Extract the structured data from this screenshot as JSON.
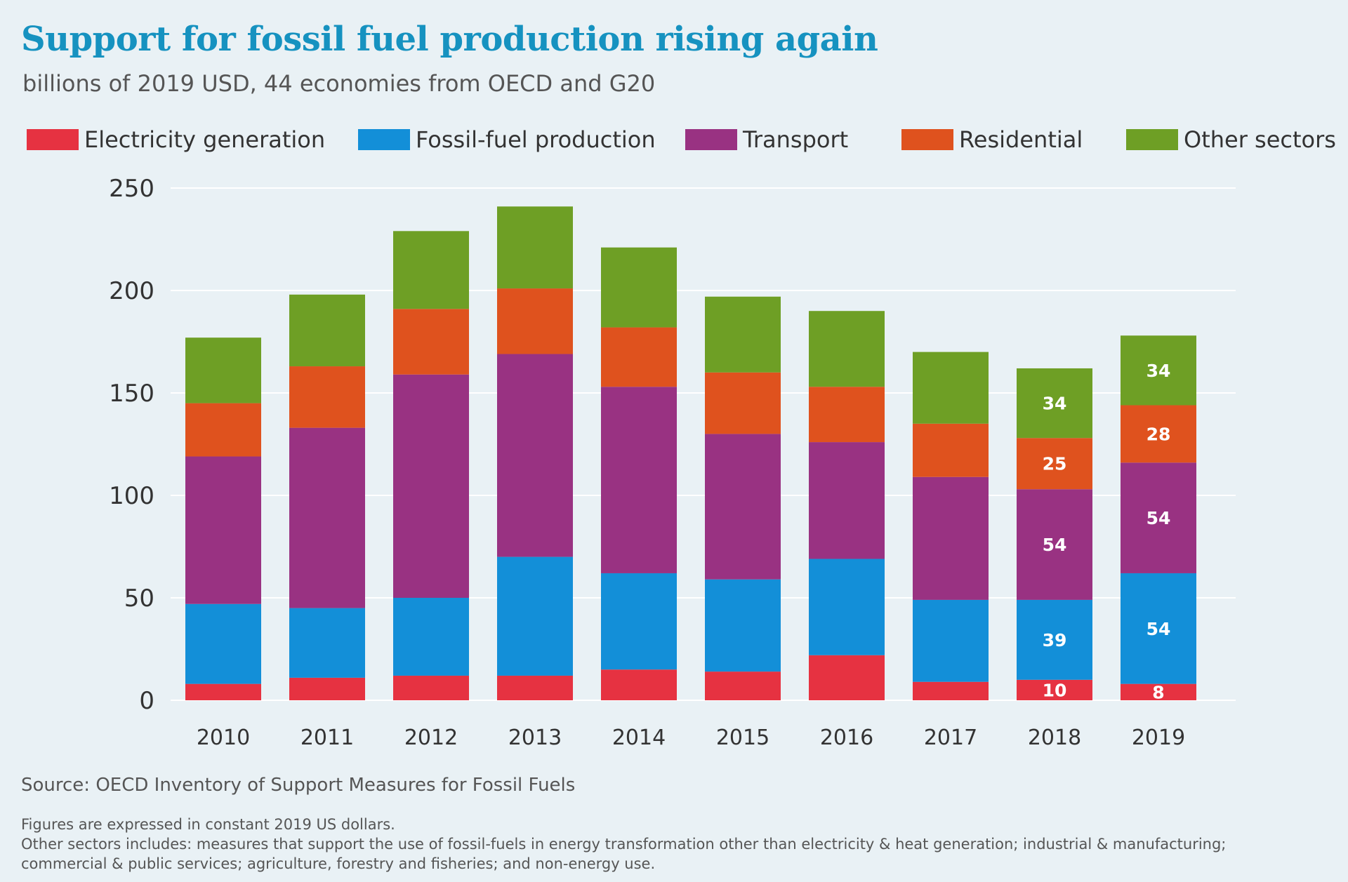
{
  "title": "Support for fossil fuel production rising again",
  "subtitle": "billions of 2019 USD, 44 economies from OECD and G20",
  "source": "Source: OECD Inventory of Support Measures for Fossil Fuels",
  "notes": [
    "Figures are expressed in constant 2019 US dollars.",
    "Other sectors includes: measures that support the use of fossil-fuels in energy transformation other than electricity & heat generation; industrial & manufacturing;",
    "commercial & public services; agriculture, forestry and fisheries; and non-energy use."
  ],
  "chart_data": {
    "type": "bar",
    "stacked": true,
    "categories": [
      "2010",
      "2011",
      "2012",
      "2013",
      "2014",
      "2015",
      "2016",
      "2017",
      "2018",
      "2019"
    ],
    "series": [
      {
        "name": "Electricity generation",
        "color": "#e63241",
        "values": [
          8,
          11,
          12,
          12,
          15,
          14,
          22,
          9,
          10,
          8
        ],
        "labels": [
          "",
          "",
          "",
          "",
          "",
          "",
          "",
          "",
          "10",
          "8"
        ]
      },
      {
        "name": "Fossil-fuel production",
        "color": "#138fd8",
        "values": [
          39,
          34,
          38,
          58,
          47,
          45,
          47,
          40,
          39,
          54
        ],
        "labels": [
          "",
          "",
          "",
          "",
          "",
          "",
          "",
          "",
          "39",
          "54"
        ]
      },
      {
        "name": "Transport",
        "color": "#993282",
        "values": [
          72,
          88,
          109,
          99,
          91,
          71,
          57,
          60,
          54,
          54
        ],
        "labels": [
          "",
          "",
          "",
          "",
          "",
          "",
          "",
          "",
          "54",
          "54"
        ]
      },
      {
        "name": "Residential",
        "color": "#df521e",
        "values": [
          26,
          30,
          32,
          32,
          29,
          30,
          27,
          26,
          25,
          28
        ],
        "labels": [
          "",
          "",
          "",
          "",
          "",
          "",
          "",
          "",
          "25",
          "28"
        ]
      },
      {
        "name": "Other sectors",
        "color": "#6e9f25",
        "values": [
          32,
          35,
          38,
          40,
          39,
          37,
          37,
          35,
          34,
          34
        ],
        "labels": [
          "",
          "",
          "",
          "",
          "",
          "",
          "",
          "",
          "34",
          "34"
        ]
      }
    ],
    "ylim": [
      0,
      250
    ],
    "yticks": [
      "0",
      "50",
      "100",
      "150",
      "200",
      "250"
    ],
    "ytick_values": [
      0,
      50,
      100,
      150,
      200,
      250
    ],
    "grid": true,
    "legend_position": "top",
    "xlabel": "",
    "ylabel": ""
  }
}
